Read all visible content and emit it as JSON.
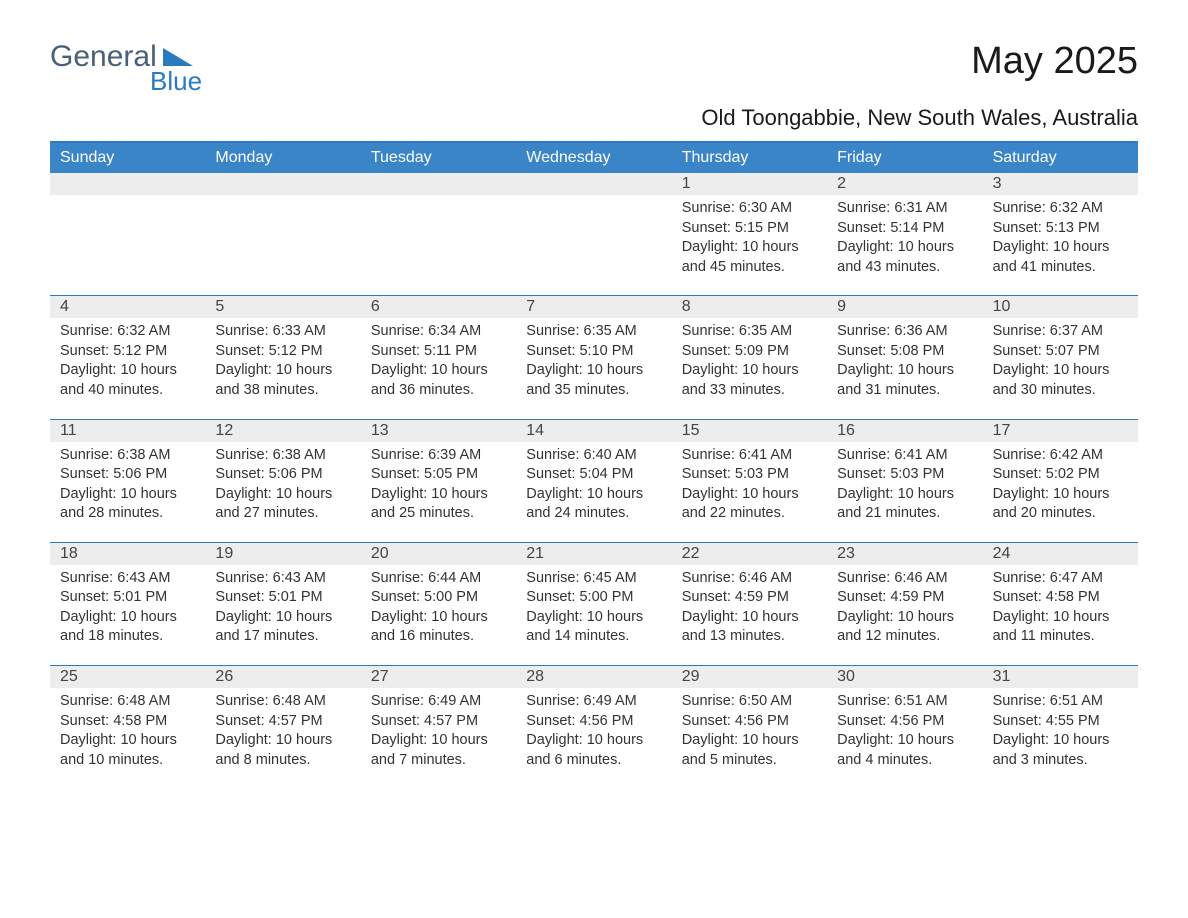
{
  "logo": {
    "text_general": "General",
    "text_blue": "Blue",
    "general_color": "#4a6078",
    "blue_color": "#2a7ac0",
    "triangle_color": "#2a7ac0"
  },
  "title": "May 2025",
  "subtitle": "Old Toongabbie, New South Wales, Australia",
  "colors": {
    "header_bg": "#3a85c8",
    "header_text": "#ffffff",
    "numrow_bg": "#ededed",
    "border": "#2a7ac0",
    "text": "#333333",
    "background": "#ffffff"
  },
  "day_headers": [
    "Sunday",
    "Monday",
    "Tuesday",
    "Wednesday",
    "Thursday",
    "Friday",
    "Saturday"
  ],
  "weeks": [
    {
      "nums": [
        "",
        "",
        "",
        "",
        "1",
        "2",
        "3"
      ],
      "cells": [
        [],
        [],
        [],
        [],
        [
          "Sunrise: 6:30 AM",
          "Sunset: 5:15 PM",
          "Daylight: 10 hours",
          "and 45 minutes."
        ],
        [
          "Sunrise: 6:31 AM",
          "Sunset: 5:14 PM",
          "Daylight: 10 hours",
          "and 43 minutes."
        ],
        [
          "Sunrise: 6:32 AM",
          "Sunset: 5:13 PM",
          "Daylight: 10 hours",
          "and 41 minutes."
        ]
      ]
    },
    {
      "nums": [
        "4",
        "5",
        "6",
        "7",
        "8",
        "9",
        "10"
      ],
      "cells": [
        [
          "Sunrise: 6:32 AM",
          "Sunset: 5:12 PM",
          "Daylight: 10 hours",
          "and 40 minutes."
        ],
        [
          "Sunrise: 6:33 AM",
          "Sunset: 5:12 PM",
          "Daylight: 10 hours",
          "and 38 minutes."
        ],
        [
          "Sunrise: 6:34 AM",
          "Sunset: 5:11 PM",
          "Daylight: 10 hours",
          "and 36 minutes."
        ],
        [
          "Sunrise: 6:35 AM",
          "Sunset: 5:10 PM",
          "Daylight: 10 hours",
          "and 35 minutes."
        ],
        [
          "Sunrise: 6:35 AM",
          "Sunset: 5:09 PM",
          "Daylight: 10 hours",
          "and 33 minutes."
        ],
        [
          "Sunrise: 6:36 AM",
          "Sunset: 5:08 PM",
          "Daylight: 10 hours",
          "and 31 minutes."
        ],
        [
          "Sunrise: 6:37 AM",
          "Sunset: 5:07 PM",
          "Daylight: 10 hours",
          "and 30 minutes."
        ]
      ]
    },
    {
      "nums": [
        "11",
        "12",
        "13",
        "14",
        "15",
        "16",
        "17"
      ],
      "cells": [
        [
          "Sunrise: 6:38 AM",
          "Sunset: 5:06 PM",
          "Daylight: 10 hours",
          "and 28 minutes."
        ],
        [
          "Sunrise: 6:38 AM",
          "Sunset: 5:06 PM",
          "Daylight: 10 hours",
          "and 27 minutes."
        ],
        [
          "Sunrise: 6:39 AM",
          "Sunset: 5:05 PM",
          "Daylight: 10 hours",
          "and 25 minutes."
        ],
        [
          "Sunrise: 6:40 AM",
          "Sunset: 5:04 PM",
          "Daylight: 10 hours",
          "and 24 minutes."
        ],
        [
          "Sunrise: 6:41 AM",
          "Sunset: 5:03 PM",
          "Daylight: 10 hours",
          "and 22 minutes."
        ],
        [
          "Sunrise: 6:41 AM",
          "Sunset: 5:03 PM",
          "Daylight: 10 hours",
          "and 21 minutes."
        ],
        [
          "Sunrise: 6:42 AM",
          "Sunset: 5:02 PM",
          "Daylight: 10 hours",
          "and 20 minutes."
        ]
      ]
    },
    {
      "nums": [
        "18",
        "19",
        "20",
        "21",
        "22",
        "23",
        "24"
      ],
      "cells": [
        [
          "Sunrise: 6:43 AM",
          "Sunset: 5:01 PM",
          "Daylight: 10 hours",
          "and 18 minutes."
        ],
        [
          "Sunrise: 6:43 AM",
          "Sunset: 5:01 PM",
          "Daylight: 10 hours",
          "and 17 minutes."
        ],
        [
          "Sunrise: 6:44 AM",
          "Sunset: 5:00 PM",
          "Daylight: 10 hours",
          "and 16 minutes."
        ],
        [
          "Sunrise: 6:45 AM",
          "Sunset: 5:00 PM",
          "Daylight: 10 hours",
          "and 14 minutes."
        ],
        [
          "Sunrise: 6:46 AM",
          "Sunset: 4:59 PM",
          "Daylight: 10 hours",
          "and 13 minutes."
        ],
        [
          "Sunrise: 6:46 AM",
          "Sunset: 4:59 PM",
          "Daylight: 10 hours",
          "and 12 minutes."
        ],
        [
          "Sunrise: 6:47 AM",
          "Sunset: 4:58 PM",
          "Daylight: 10 hours",
          "and 11 minutes."
        ]
      ]
    },
    {
      "nums": [
        "25",
        "26",
        "27",
        "28",
        "29",
        "30",
        "31"
      ],
      "cells": [
        [
          "Sunrise: 6:48 AM",
          "Sunset: 4:58 PM",
          "Daylight: 10 hours",
          "and 10 minutes."
        ],
        [
          "Sunrise: 6:48 AM",
          "Sunset: 4:57 PM",
          "Daylight: 10 hours",
          "and 8 minutes."
        ],
        [
          "Sunrise: 6:49 AM",
          "Sunset: 4:57 PM",
          "Daylight: 10 hours",
          "and 7 minutes."
        ],
        [
          "Sunrise: 6:49 AM",
          "Sunset: 4:56 PM",
          "Daylight: 10 hours",
          "and 6 minutes."
        ],
        [
          "Sunrise: 6:50 AM",
          "Sunset: 4:56 PM",
          "Daylight: 10 hours",
          "and 5 minutes."
        ],
        [
          "Sunrise: 6:51 AM",
          "Sunset: 4:56 PM",
          "Daylight: 10 hours",
          "and 4 minutes."
        ],
        [
          "Sunrise: 6:51 AM",
          "Sunset: 4:55 PM",
          "Daylight: 10 hours",
          "and 3 minutes."
        ]
      ]
    }
  ]
}
